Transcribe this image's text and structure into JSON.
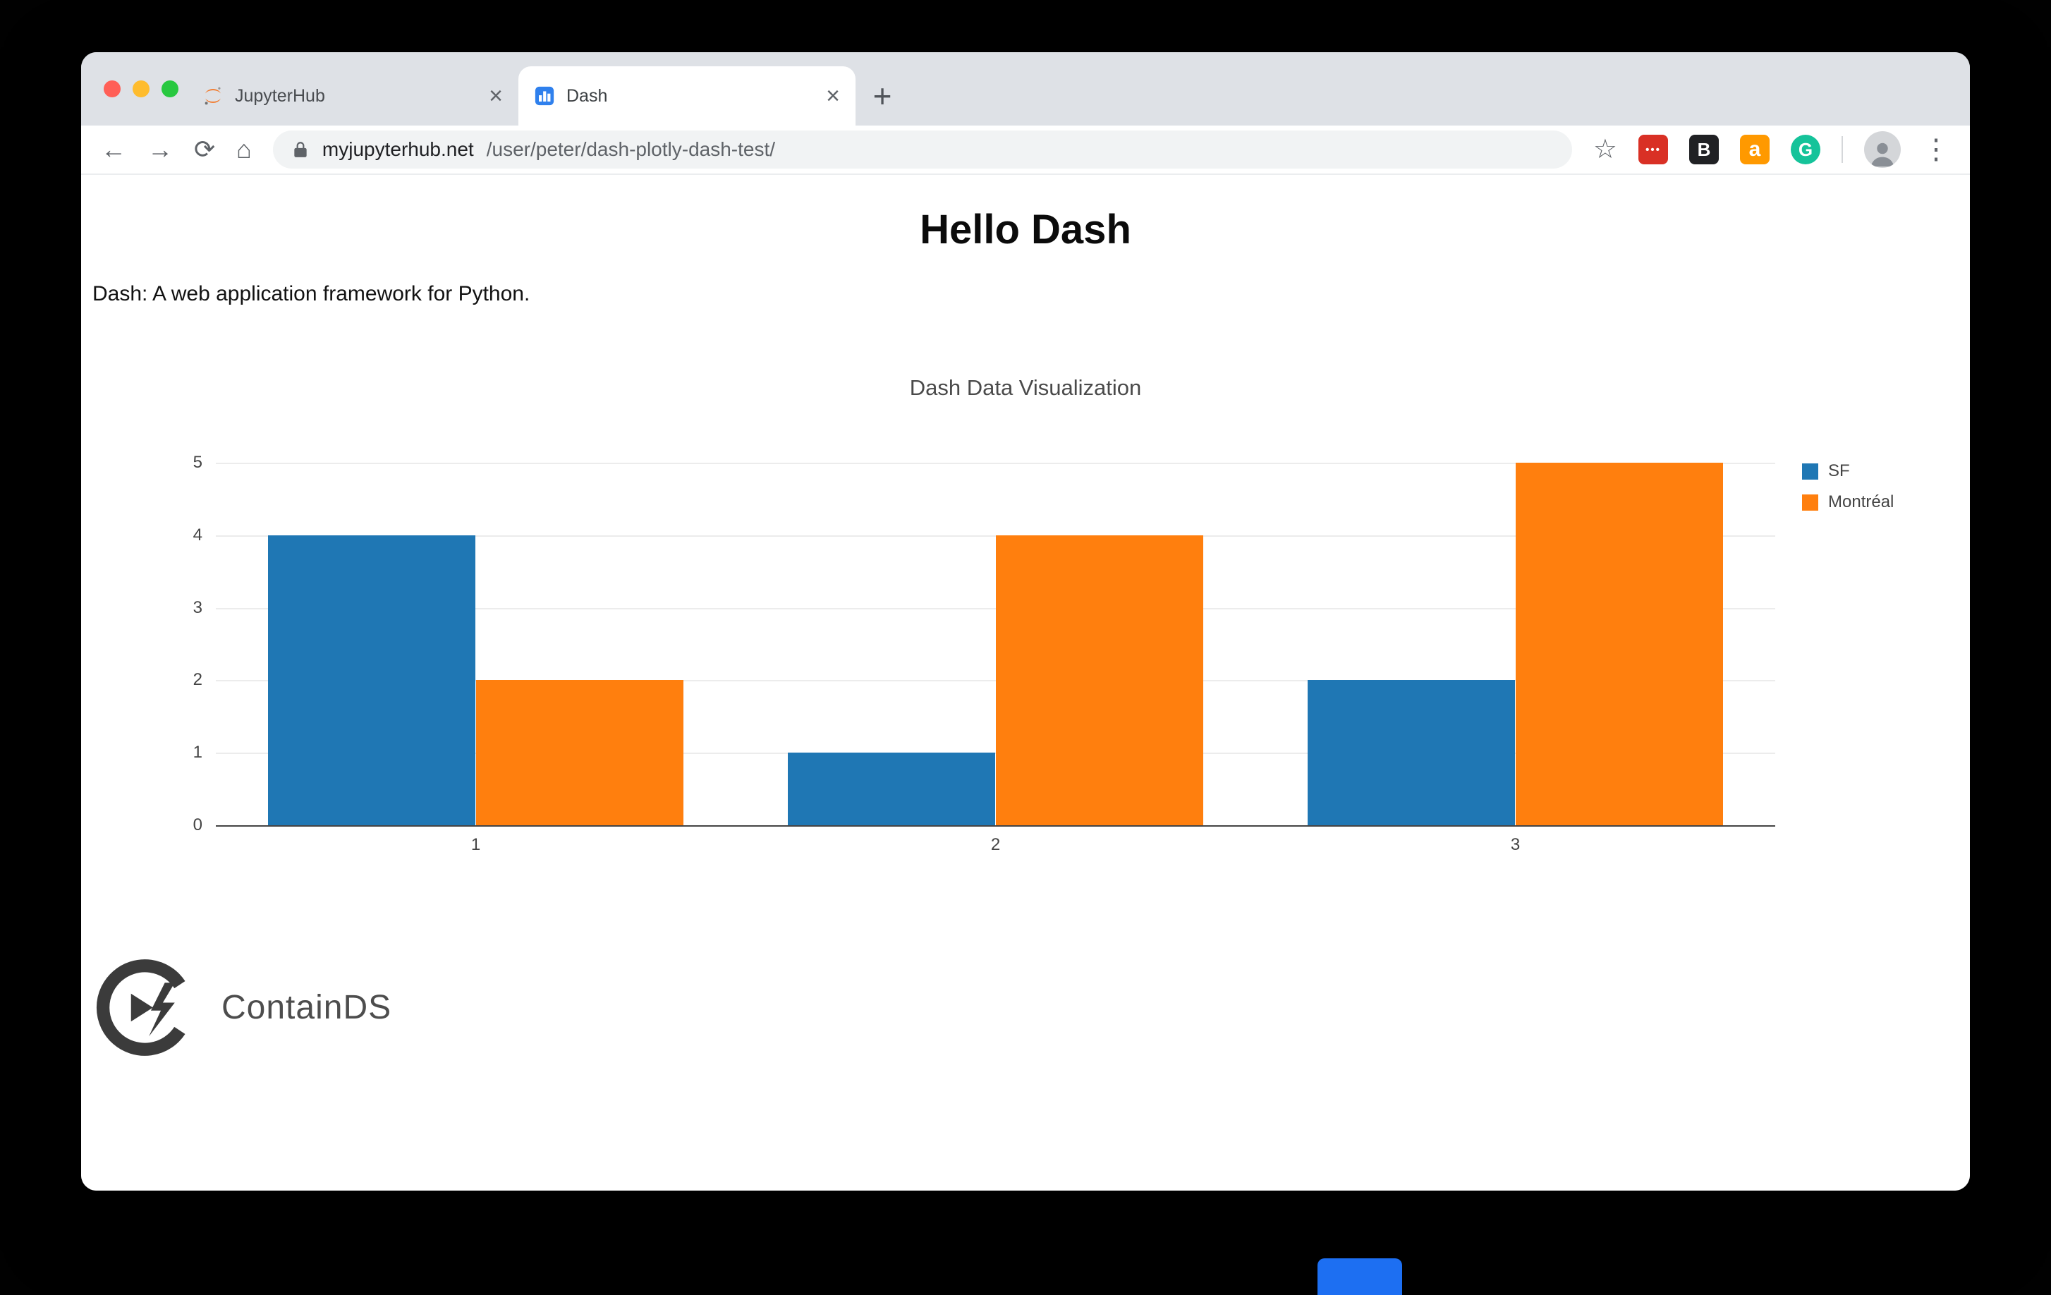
{
  "browser": {
    "tabs": [
      {
        "title": "JupyterHub"
      },
      {
        "title": "Dash"
      }
    ],
    "close_tab_glyph": "×",
    "new_tab_glyph": "+",
    "nav": {
      "back": "←",
      "forward": "→",
      "reload": "⟳",
      "home": "⌂",
      "bookmark": "☆",
      "menu": "⋮"
    },
    "url": {
      "domain": "myjupyterhub.net",
      "path": "/user/peter/dash-plotly-dash-test/"
    },
    "extensions": [
      {
        "label": "•••",
        "bg": "#d93025"
      },
      {
        "label": "B",
        "bg": "#202124"
      },
      {
        "label": "a",
        "bg": "#ff9900"
      },
      {
        "label": "G",
        "bg": "#15c39a"
      }
    ]
  },
  "page": {
    "heading": "Hello Dash",
    "description": "Dash: A web application framework for Python.",
    "brand": "ContainDS"
  },
  "chart_data": {
    "type": "bar",
    "barmode": "group",
    "title": "Dash Data Visualization",
    "categories": [
      "1",
      "2",
      "3"
    ],
    "series": [
      {
        "name": "SF",
        "color": "#1f77b4",
        "values": [
          4,
          1,
          2
        ]
      },
      {
        "name": "Montréal",
        "color": "#ff7f0e",
        "values": [
          2,
          4,
          5
        ]
      }
    ],
    "xlabel": "",
    "ylabel": "",
    "ylim": [
      0,
      5
    ],
    "yticks": [
      0,
      1,
      2,
      3,
      4,
      5
    ],
    "grid": true,
    "legend_position": "top-right"
  }
}
